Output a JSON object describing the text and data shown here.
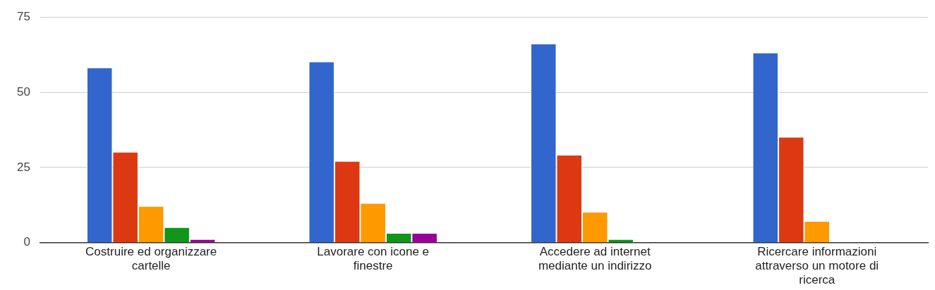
{
  "chart_data": {
    "type": "bar",
    "categories": [
      [
        "Costruire ed organizzare",
        "cartelle"
      ],
      [
        "Lavorare con icone e",
        "finestre"
      ],
      [
        "Accedere ad internet",
        "mediante un indirizzo"
      ],
      [
        "Ricercare informazioni",
        "attraverso un motore di",
        "ricerca"
      ]
    ],
    "series": [
      {
        "color": "#3366cc",
        "values": [
          58,
          60,
          66,
          63
        ]
      },
      {
        "color": "#dc3912",
        "values": [
          30,
          27,
          29,
          35
        ]
      },
      {
        "color": "#ff9900",
        "values": [
          12,
          13,
          10,
          7
        ]
      },
      {
        "color": "#109618",
        "values": [
          5,
          3,
          1,
          0
        ]
      },
      {
        "color": "#990099",
        "values": [
          1,
          3,
          0,
          0
        ]
      }
    ],
    "ylim": [
      0,
      75
    ],
    "yticks": [
      0,
      25,
      50,
      75
    ],
    "grid": "y",
    "legend": false
  }
}
